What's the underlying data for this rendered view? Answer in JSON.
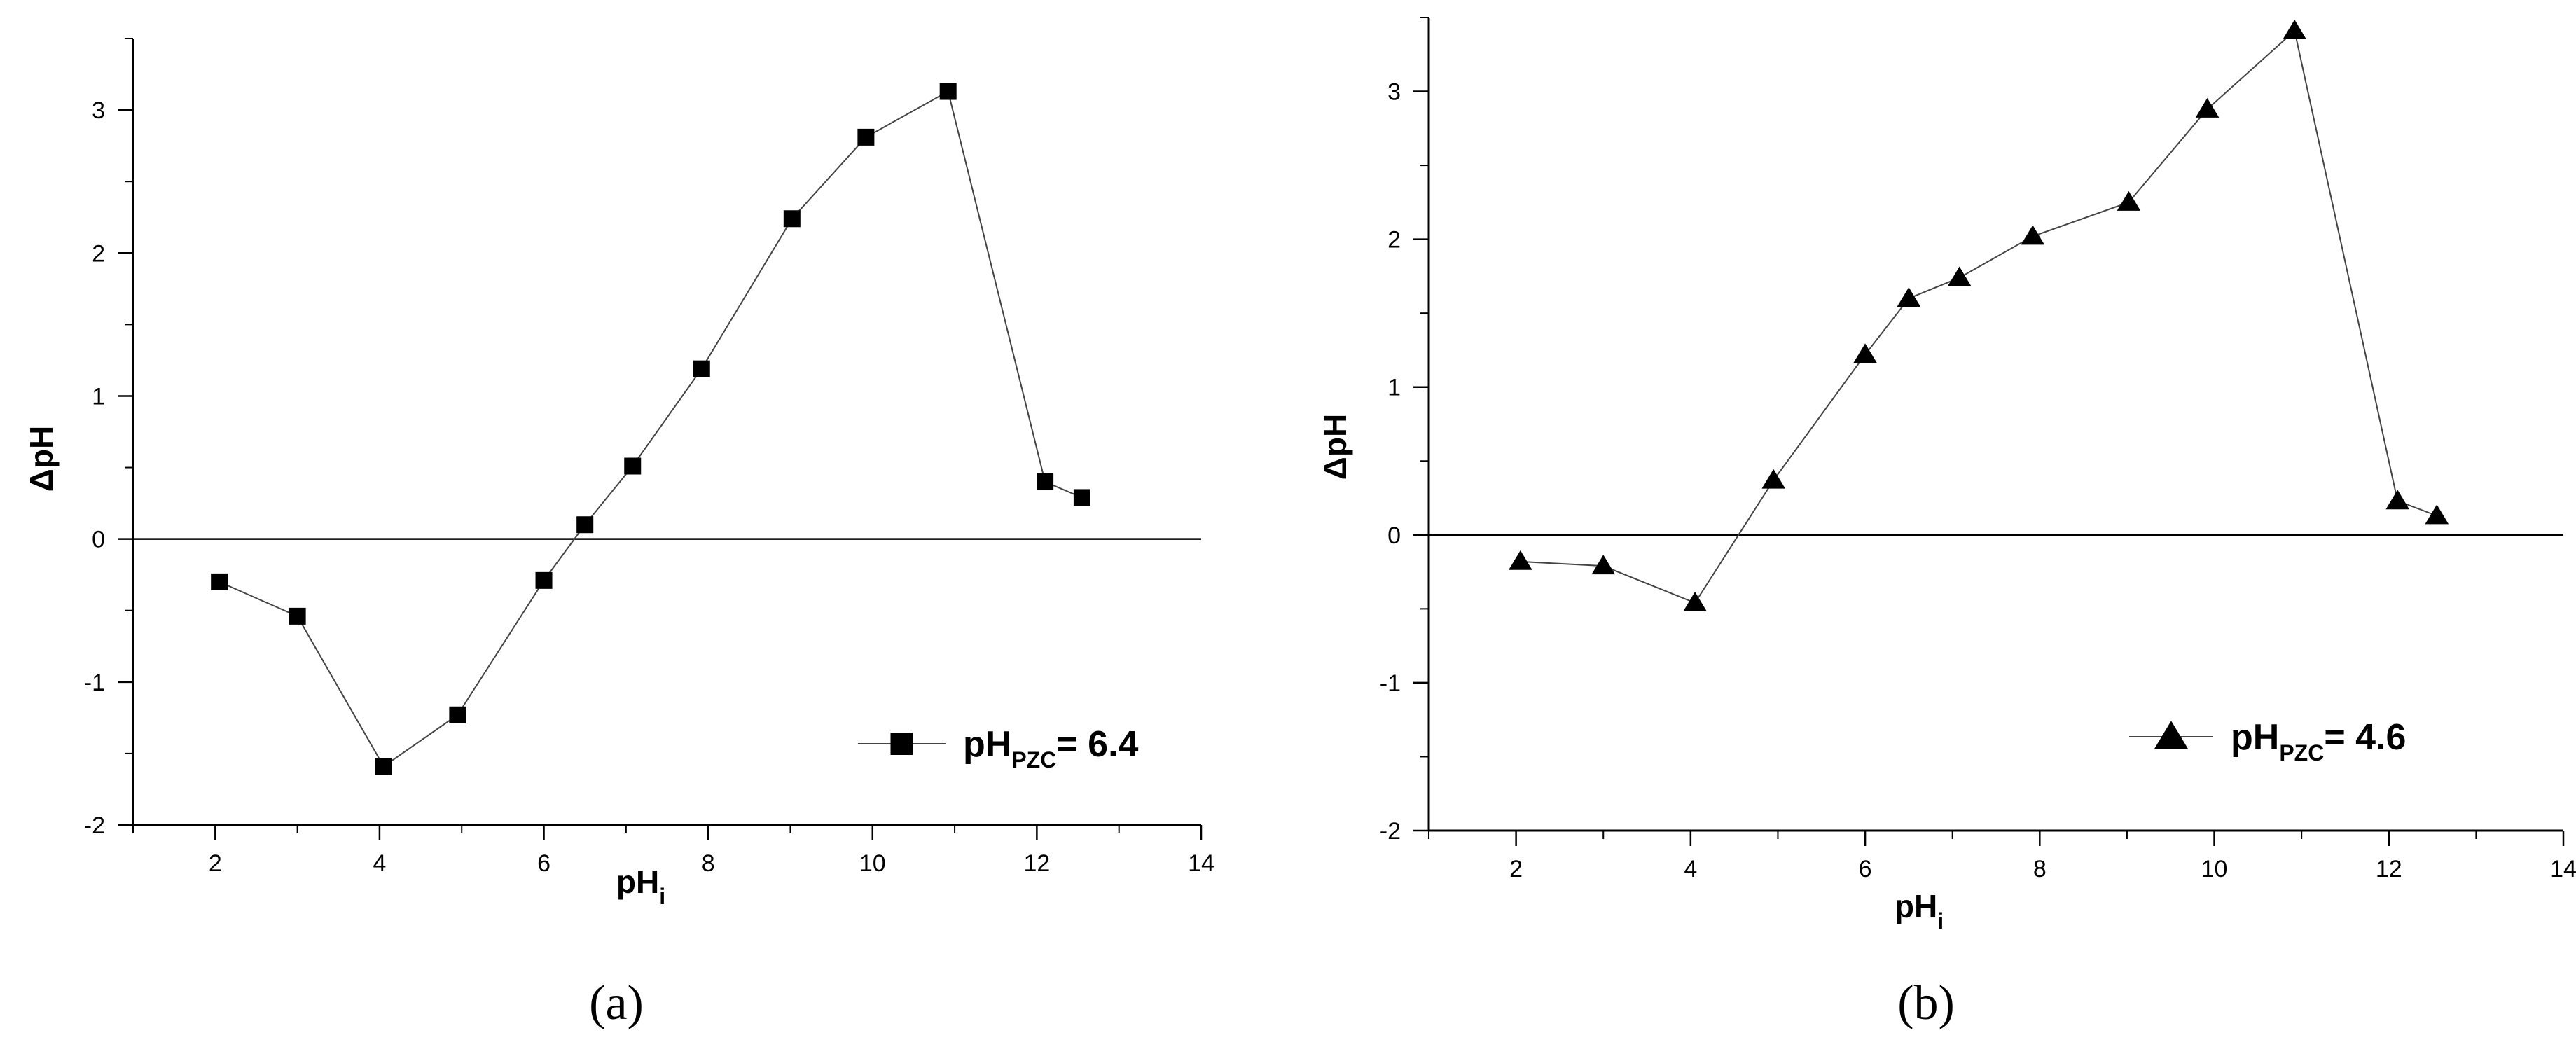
{
  "chart_data": [
    {
      "type": "line",
      "panel_label": "(a)",
      "xlabel": "pH",
      "xlabel_sub": "i",
      "ylabel": "ΔpH",
      "xlim": [
        1,
        14
      ],
      "ylim": [
        -2,
        3.5
      ],
      "xticks": [
        2,
        4,
        6,
        8,
        10,
        12,
        14
      ],
      "xtick_labels": [
        "2",
        "4",
        "6",
        "8",
        "10",
        "12",
        "14"
      ],
      "yticks": [
        -2,
        -1,
        0,
        1,
        2,
        3
      ],
      "ytick_labels": [
        "-2",
        "-1",
        "0",
        "1",
        "2",
        "3"
      ],
      "reference_line_y": 0,
      "grid": false,
      "legend_position": "bottom-right",
      "series": [
        {
          "marker": "square",
          "legend": {
            "main": "pH",
            "sub": "PZC",
            "suffix": "= 6.4"
          },
          "x": [
            2.05,
            3.0,
            4.05,
            4.95,
            6.0,
            6.5,
            7.08,
            7.92,
            9.02,
            9.92,
            10.92,
            12.1,
            12.55
          ],
          "y": [
            -0.3,
            -0.54,
            -1.59,
            -1.23,
            -0.29,
            0.1,
            0.51,
            1.19,
            2.24,
            2.81,
            3.13,
            0.4,
            0.29
          ]
        }
      ]
    },
    {
      "type": "line",
      "panel_label": "(b)",
      "xlabel": "pH",
      "xlabel_sub": "i",
      "ylabel": "ΔpH",
      "xlim": [
        1,
        14
      ],
      "ylim": [
        -2,
        3.5
      ],
      "xticks": [
        2,
        4,
        6,
        8,
        10,
        12,
        14
      ],
      "xtick_labels": [
        "2",
        "4",
        "6",
        "8",
        "10",
        "12",
        "14"
      ],
      "yticks": [
        -2,
        -1,
        0,
        1,
        2,
        3
      ],
      "ytick_labels": [
        "-2",
        "-1",
        "0",
        "1",
        "2",
        "3"
      ],
      "reference_line_y": 0,
      "grid": false,
      "legend_position": "bottom-right",
      "series": [
        {
          "marker": "triangle",
          "legend": {
            "main": "pH",
            "sub": "PZC",
            "suffix": "= 4.6"
          },
          "x": [
            2.05,
            3.0,
            4.05,
            4.95,
            6.0,
            6.5,
            7.08,
            7.92,
            9.02,
            9.92,
            10.92,
            12.1,
            12.55
          ],
          "y": [
            -0.18,
            -0.21,
            -0.46,
            0.37,
            1.22,
            1.6,
            1.74,
            2.02,
            2.25,
            2.88,
            3.41,
            0.23,
            0.13
          ]
        }
      ]
    }
  ]
}
